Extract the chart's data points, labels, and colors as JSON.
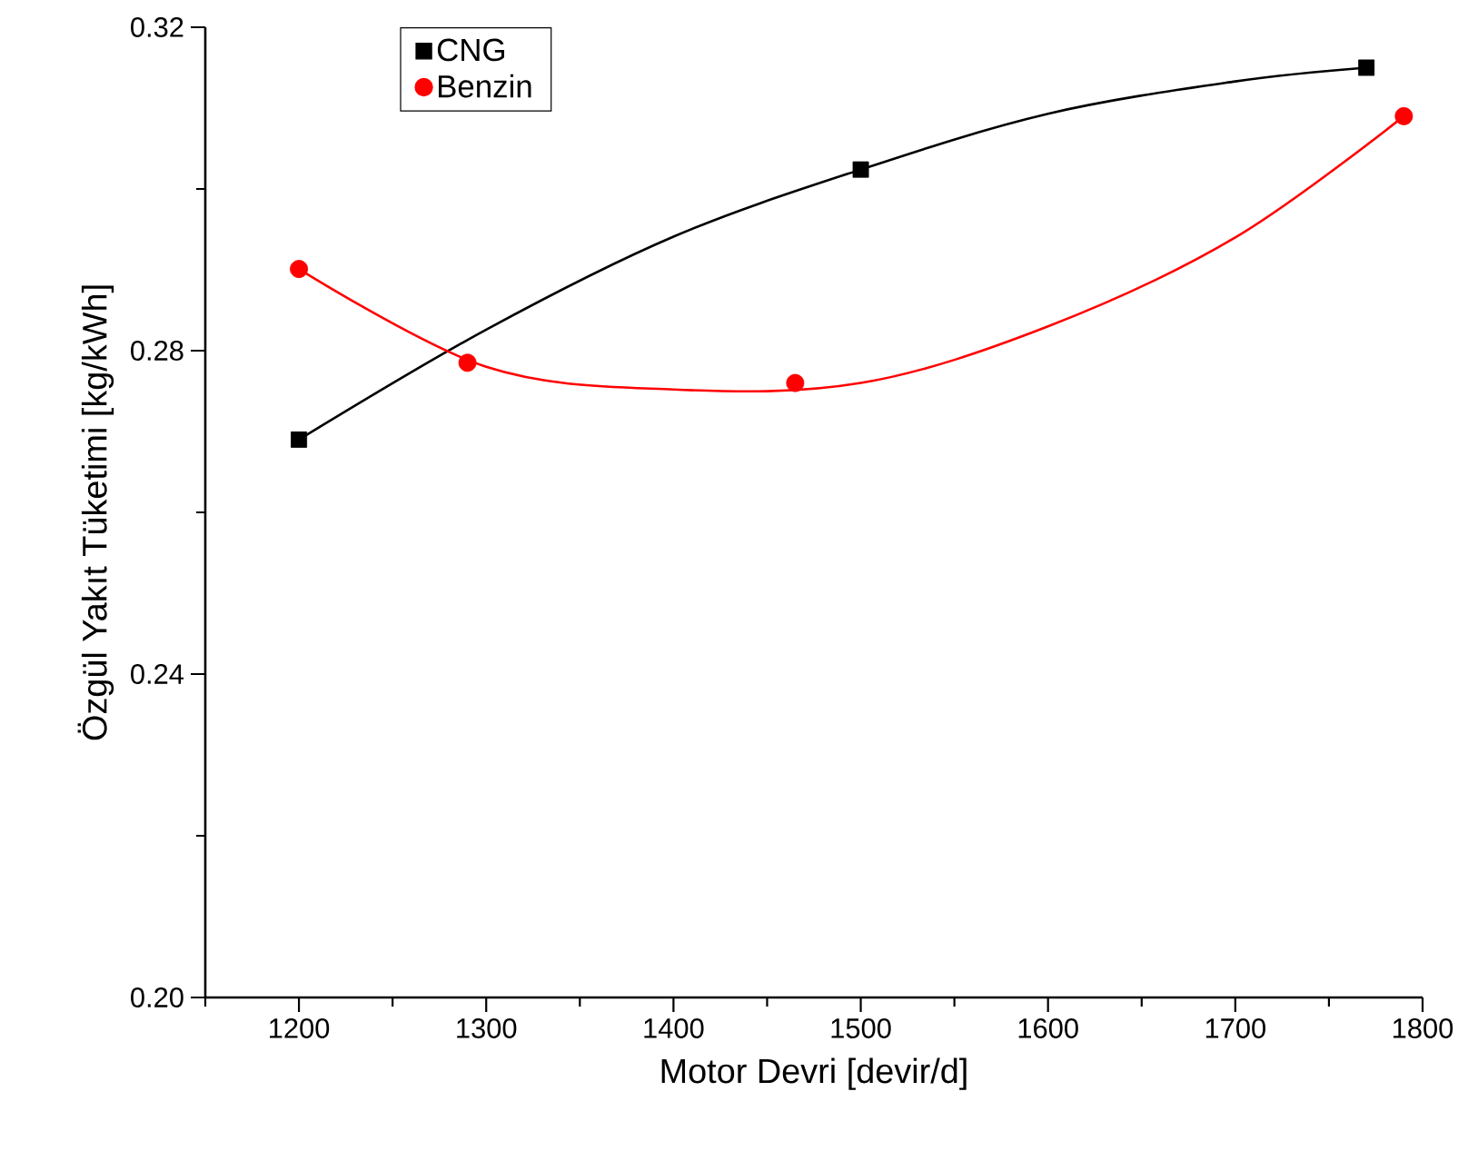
{
  "chart_data": {
    "type": "scatter",
    "xlabel": "Motor Devri [devir/d]",
    "ylabel": "Özgül Yakıt Tüketimi [kg/kWh]",
    "xlim": [
      1150,
      1800
    ],
    "ylim": [
      0.2,
      0.32
    ],
    "xticks": [
      {
        "value": 1150,
        "label": null
      },
      1200,
      {
        "value": 1250,
        "label": null
      },
      1300,
      {
        "value": 1350,
        "label": null
      },
      1400,
      {
        "value": 1450,
        "label": null
      },
      1500,
      {
        "value": 1550,
        "label": null
      },
      1600,
      {
        "value": 1650,
        "label": null
      },
      1700,
      {
        "value": 1750,
        "label": null
      },
      1800
    ],
    "yticks": [
      {
        "value": 0.2,
        "label": "0.20"
      },
      {
        "value": 0.22,
        "label": null
      },
      {
        "value": 0.24,
        "label": "0.24"
      },
      {
        "value": 0.26,
        "label": null
      },
      {
        "value": 0.28,
        "label": "0.28"
      },
      {
        "value": 0.3,
        "label": null
      },
      {
        "value": 0.32,
        "label": "0.32"
      }
    ],
    "legend": "top left",
    "grid": false,
    "series": [
      {
        "name": "CNG",
        "color": "#000000",
        "marker": "square",
        "x": [
          1200,
          1500,
          1770
        ],
        "values": [
          0.269,
          0.3024,
          0.315
        ]
      },
      {
        "name": "Benzin",
        "color": "#ff0000",
        "marker": "circle",
        "x": [
          1200,
          1290,
          1465,
          1790
        ],
        "values": [
          0.2901,
          0.2785,
          0.276,
          0.309
        ]
      },
      {
        "type": "line",
        "color": "#000000",
        "marker": "none",
        "x": [
          1200,
          1300,
          1400,
          1500,
          1600,
          1700,
          1770
        ],
        "values": [
          0.269,
          0.2826,
          0.2941,
          0.3024,
          0.3093,
          0.3133,
          0.315
        ]
      },
      {
        "type": "line",
        "color": "#ff0000",
        "marker": "none",
        "x": [
          1200,
          1300,
          1400,
          1500,
          1600,
          1700,
          1790
        ],
        "values": [
          0.2901,
          0.278,
          0.2752,
          0.276,
          0.283,
          0.294,
          0.309
        ]
      }
    ]
  }
}
